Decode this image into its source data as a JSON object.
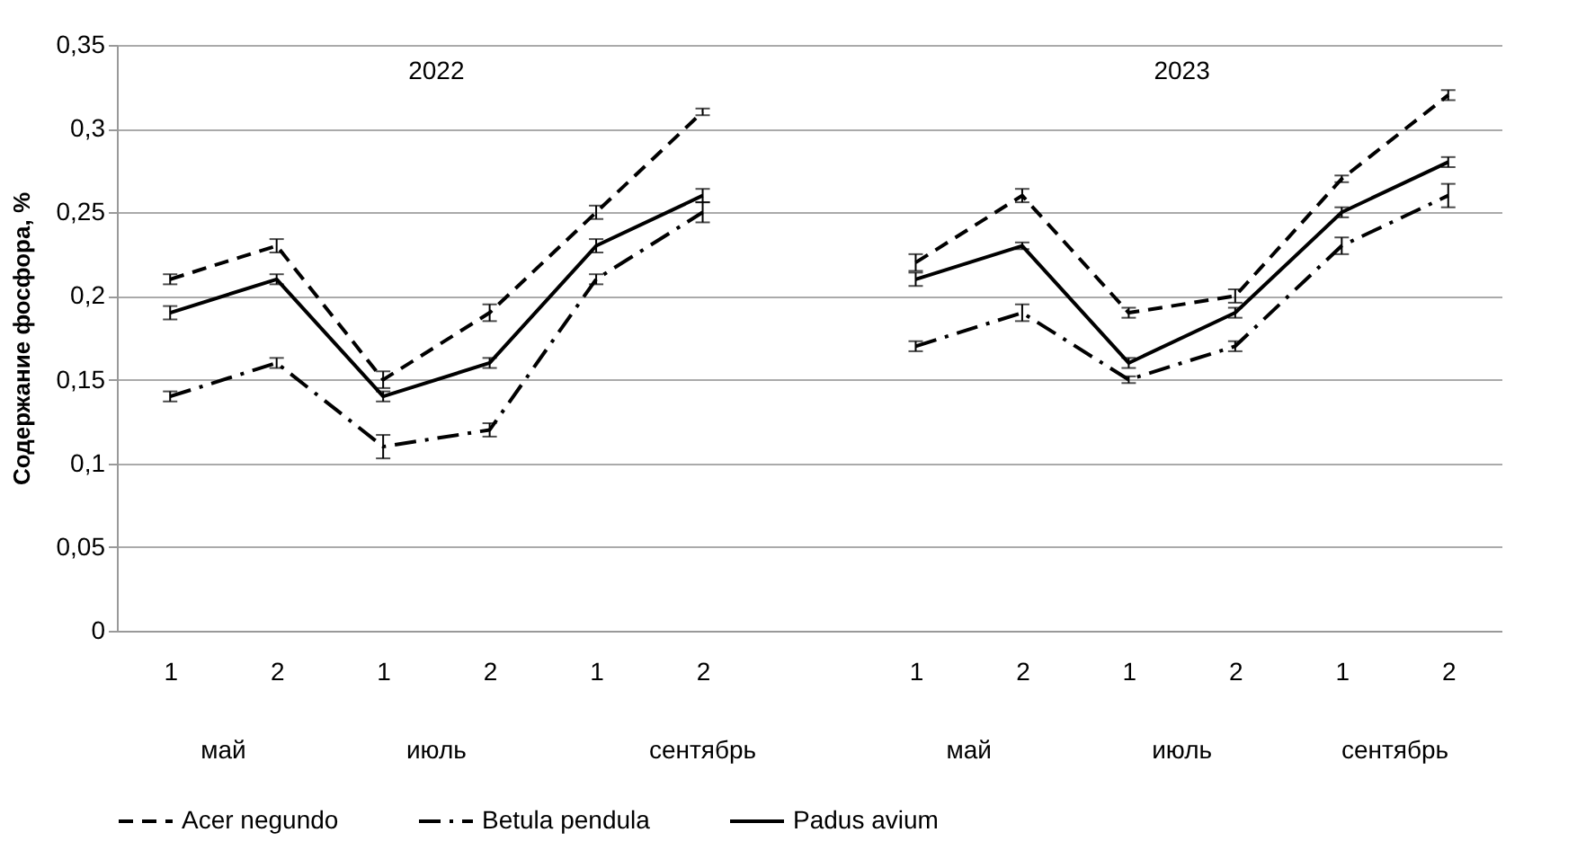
{
  "chart_data": {
    "type": "line",
    "ylabel": "Содержание фосфора, %",
    "categories": [
      "1",
      "2",
      "1",
      "2",
      "1",
      "2",
      null,
      "1",
      "2",
      "1",
      "2",
      "1",
      "2"
    ],
    "series": [
      {
        "name": "Acer negundo",
        "color": "#000000",
        "line_style": "dashed",
        "values": [
          0.21,
          0.23,
          0.15,
          0.19,
          0.25,
          0.31,
          null,
          0.22,
          0.26,
          0.19,
          0.2,
          0.27,
          0.32
        ],
        "errors": [
          0.003,
          0.004,
          0.005,
          0.005,
          0.004,
          0.002,
          null,
          0.005,
          0.004,
          0.003,
          0.004,
          0.002,
          0.003
        ]
      },
      {
        "name": "Betula pendula",
        "color": "#000000",
        "line_style": "dashdot",
        "values": [
          0.14,
          0.16,
          0.11,
          0.12,
          0.21,
          0.25,
          null,
          0.17,
          0.19,
          0.15,
          0.17,
          0.23,
          0.26
        ],
        "errors": [
          0.003,
          0.003,
          0.007,
          0.004,
          0.003,
          0.006,
          null,
          0.003,
          0.005,
          0.002,
          0.003,
          0.005,
          0.007
        ]
      },
      {
        "name": "Padus avium",
        "color": "#000000",
        "line_style": "solid",
        "values": [
          0.19,
          0.21,
          0.14,
          0.16,
          0.23,
          0.26,
          null,
          0.21,
          0.23,
          0.16,
          0.19,
          0.25,
          0.28
        ],
        "errors": [
          0.004,
          0.003,
          0.003,
          0.003,
          0.004,
          0.004,
          null,
          0.004,
          0.002,
          0.003,
          0.003,
          0.003,
          0.003
        ]
      }
    ],
    "ylim": [
      0,
      0.35
    ],
    "yticks": [
      0,
      {
        "value": 0.05,
        "label": "0,05"
      },
      {
        "value": 0.1,
        "label": "0,1"
      },
      {
        "value": 0.15,
        "label": "0,15"
      },
      {
        "value": 0.2,
        "label": "0,2"
      },
      {
        "value": 0.25,
        "label": "0,25"
      },
      {
        "value": 0.3,
        "label": "0,3"
      },
      {
        "value": 0.35,
        "label": "0,35"
      }
    ],
    "grid": "y",
    "legend": "bottom",
    "marker": "none",
    "annotations": [
      "2022",
      "2023",
      "май",
      "июль",
      "сентябрь",
      "май",
      "июль",
      "сентябрь"
    ]
  }
}
